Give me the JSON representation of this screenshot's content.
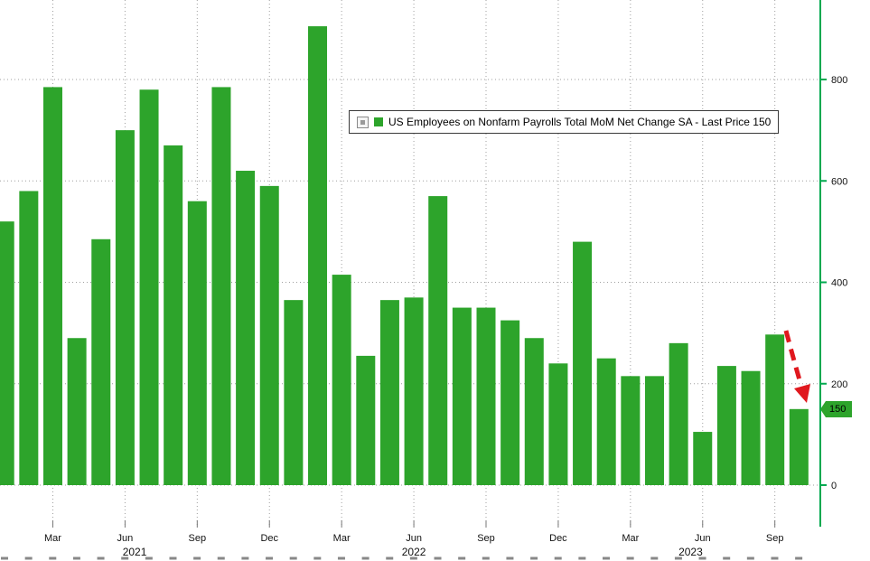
{
  "legend": {
    "label": "US Employees on Nonfarm Payrolls Total MoM Net Change SA - Last Price 150"
  },
  "chart_data": {
    "type": "bar",
    "title": "US Employees on Nonfarm Payrolls Total MoM Net Change SA",
    "last_price": 150,
    "last_price_label": "150",
    "x": [
      "Jan 2021",
      "Feb 2021",
      "Mar 2021",
      "Apr 2021",
      "May 2021",
      "Jun 2021",
      "Jul 2021",
      "Aug 2021",
      "Sep 2021",
      "Oct 2021",
      "Nov 2021",
      "Dec 2021",
      "Jan 2022",
      "Feb 2022",
      "Mar 2022",
      "Apr 2022",
      "May 2022",
      "Jun 2022",
      "Jul 2022",
      "Aug 2022",
      "Sep 2022",
      "Oct 2022",
      "Nov 2022",
      "Dec 2022",
      "Jan 2023",
      "Feb 2023",
      "Mar 2023",
      "Apr 2023",
      "May 2023",
      "Jun 2023",
      "Jul 2023",
      "Aug 2023",
      "Sep 2023",
      "Oct 2023"
    ],
    "values": [
      520,
      580,
      785,
      290,
      485,
      700,
      780,
      670,
      560,
      785,
      620,
      590,
      365,
      905,
      415,
      255,
      365,
      370,
      570,
      350,
      350,
      325,
      290,
      240,
      480,
      250,
      215,
      215,
      280,
      105,
      235,
      225,
      297,
      150
    ],
    "ylim": [
      0,
      950
    ],
    "y_ticks": [
      0,
      200,
      400,
      600,
      800
    ],
    "x_month_tick_names": [
      "Mar",
      "Jun",
      "Sep",
      "Dec"
    ],
    "year_ticks": [
      {
        "label": "2021",
        "index": 5.4
      },
      {
        "label": "2022",
        "index": 17.0
      },
      {
        "label": "2023",
        "index": 28.5
      }
    ],
    "grid": "dotted",
    "legend_position": "top-center",
    "bar_color": "#2DA42B",
    "axis_color": "#00A94F",
    "grid_color": "#9F9F9F",
    "annotation": {
      "type": "arrow",
      "color": "#E0181E",
      "style": "dashed",
      "meaning": "decline to last bar value 150"
    }
  }
}
